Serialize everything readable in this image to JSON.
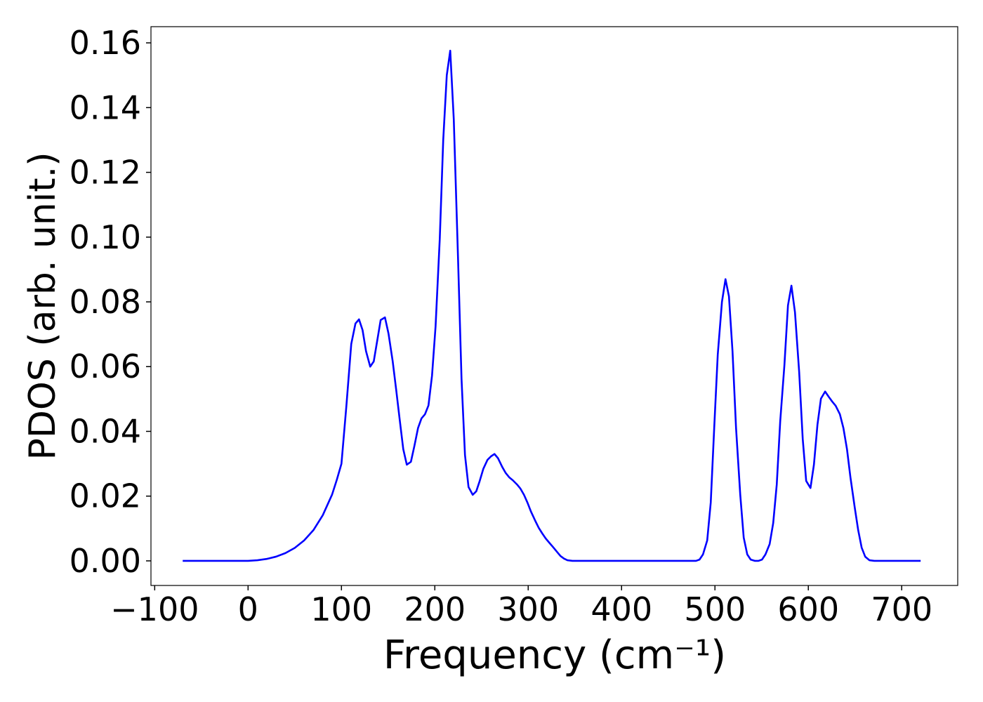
{
  "chart_data": {
    "type": "line",
    "xlabel": "Frequency (cm⁻¹)",
    "ylabel": "PDOS (arb. unit.)",
    "x": [
      -70,
      0,
      10,
      20,
      30,
      40,
      50,
      60,
      70,
      80,
      90,
      95,
      100,
      105.3,
      110.5,
      115,
      118.8,
      122.6,
      126.3,
      130.8,
      134.6,
      138.3,
      142,
      146.6,
      150.4,
      154.9,
      158.6,
      162.4,
      166.2,
      170,
      174.4,
      178.2,
      182,
      185.7,
      189.5,
      193.2,
      197,
      200.8,
      205.3,
      209,
      212.8,
      216.5,
      220.3,
      224.8,
      228.6,
      232.3,
      236.1,
      240.6,
      244.4,
      248.1,
      251.9,
      256.4,
      260.2,
      263.9,
      267.7,
      272.2,
      276,
      279.7,
      283.5,
      288,
      291.7,
      295.5,
      299.2,
      303,
      307.5,
      311.3,
      315,
      318.8,
      322.6,
      327.1,
      330.8,
      334.6,
      338.3,
      342,
      347.4,
      479.7,
      483.5,
      487.2,
      491.7,
      495.5,
      499.2,
      503,
      507.5,
      511.3,
      515,
      518.8,
      522.6,
      527.1,
      530.8,
      534.6,
      538.3,
      542.9,
      546.6,
      550.4,
      554.1,
      558.6,
      562.4,
      566.2,
      569.9,
      574.4,
      578.2,
      581.9,
      585.7,
      590.2,
      594,
      597.7,
      602.3,
      606,
      609.8,
      613.5,
      618,
      621.8,
      625.6,
      629.3,
      633.8,
      637.6,
      641.4,
      645.1,
      649.6,
      653.4,
      657.1,
      660.9,
      665.4,
      670.7,
      720.3
    ],
    "series": [
      {
        "color": "#0000ff",
        "values": [
          0,
          0,
          0.0002,
          0.0006,
          0.0013,
          0.0024,
          0.004,
          0.0063,
          0.0095,
          0.0141,
          0.0205,
          0.025,
          0.03,
          0.0479,
          0.067,
          0.0733,
          0.0746,
          0.0713,
          0.0648,
          0.06,
          0.0616,
          0.068,
          0.0744,
          0.0752,
          0.0702,
          0.0616,
          0.0529,
          0.0436,
          0.0345,
          0.0297,
          0.0306,
          0.0356,
          0.041,
          0.044,
          0.0453,
          0.048,
          0.0572,
          0.0724,
          0.0995,
          0.13,
          0.15,
          0.1576,
          0.1364,
          0.094,
          0.0562,
          0.0327,
          0.0228,
          0.0204,
          0.0215,
          0.0247,
          0.0284,
          0.0312,
          0.0323,
          0.033,
          0.0317,
          0.029,
          0.0271,
          0.0258,
          0.0249,
          0.0236,
          0.0223,
          0.0204,
          0.018,
          0.0152,
          0.0124,
          0.0102,
          0.0085,
          0.0069,
          0.0056,
          0.0041,
          0.0028,
          0.0015,
          0.0007,
          0.0002,
          0,
          0,
          0.0004,
          0.002,
          0.0063,
          0.018,
          0.041,
          0.0637,
          0.08,
          0.087,
          0.0817,
          0.0648,
          0.041,
          0.0204,
          0.0072,
          0.002,
          0.0004,
          0,
          0,
          0.0004,
          0.002,
          0.0052,
          0.0117,
          0.0236,
          0.0431,
          0.0605,
          0.0789,
          0.085,
          0.0768,
          0.0583,
          0.0377,
          0.0247,
          0.0225,
          0.0297,
          0.0421,
          0.0501,
          0.0523,
          0.0507,
          0.0492,
          0.0479,
          0.0453,
          0.041,
          0.0345,
          0.0258,
          0.0167,
          0.0095,
          0.0041,
          0.0013,
          0.0002,
          0,
          0
        ]
      }
    ],
    "xlim": [
      -104,
      760
    ],
    "ylim": [
      -0.0076,
      0.165
    ],
    "xticks": [
      {
        "value": -100,
        "label": "−100"
      },
      0,
      100,
      200,
      300,
      400,
      500,
      600,
      700
    ],
    "yticks": [
      {
        "value": 0,
        "label": "0.00"
      },
      0.02,
      0.04,
      0.06,
      0.08,
      {
        "value": 0.1,
        "label": "0.10"
      },
      0.12,
      0.14,
      0.16
    ]
  }
}
